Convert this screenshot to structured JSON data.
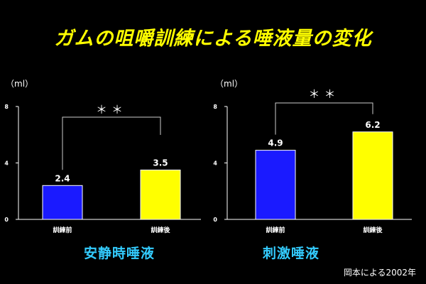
{
  "title": "ガムの咀嚼訓練による唾液量の変化",
  "citation": "岡本による2002年",
  "colors": {
    "before": "#1a1aff",
    "after": "#ffff00",
    "axis": "#ffffff",
    "subtitle": "#33ccff",
    "title": "#ffff00"
  },
  "chart_data": [
    {
      "type": "bar",
      "title": "安静時唾液",
      "unit": "（ml）",
      "categories": [
        "訓練前",
        "訓練後"
      ],
      "values": [
        2.4,
        3.5
      ],
      "value_labels": [
        "2.4",
        "3.5"
      ],
      "ylim": [
        0,
        8
      ],
      "yticks": [
        0,
        4,
        8
      ],
      "significance": "＊＊"
    },
    {
      "type": "bar",
      "title": "刺激唾液",
      "unit": "（ml）",
      "categories": [
        "訓練前",
        "訓練後"
      ],
      "values": [
        4.9,
        6.2
      ],
      "value_labels": [
        "4.9",
        "6.2"
      ],
      "ylim": [
        0,
        8
      ],
      "yticks": [
        0,
        4,
        8
      ],
      "significance": "＊＊"
    }
  ]
}
